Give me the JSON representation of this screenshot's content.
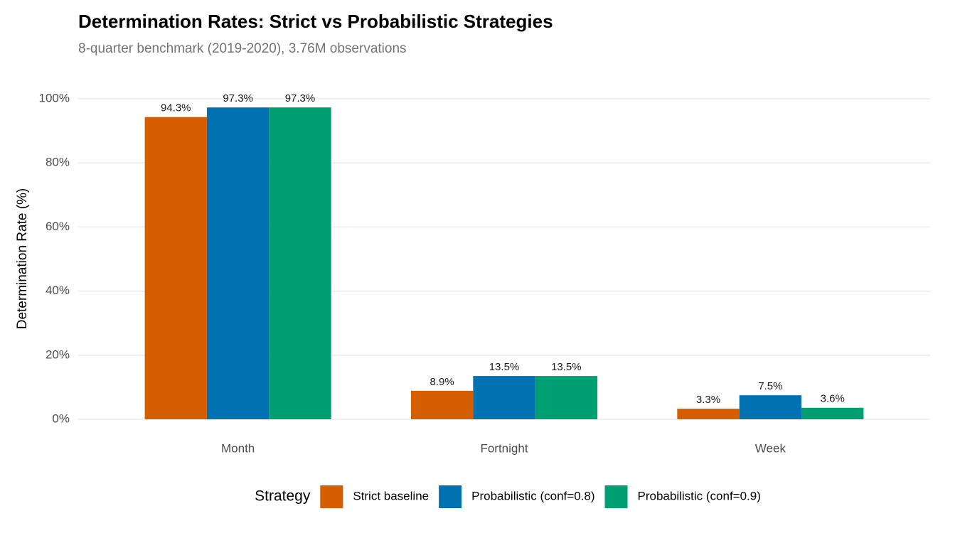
{
  "chart_data": {
    "type": "bar",
    "title": "Determination Rates: Strict vs Probabilistic Strategies",
    "subtitle": "8-quarter benchmark (2019-2020), 3.76M observations",
    "y_label": "Determination Rate (%)",
    "categories": [
      "Month",
      "Fortnight",
      "Week"
    ],
    "series": [
      {
        "name": "Strict baseline",
        "color": "#d55e00",
        "values": [
          94.3,
          8.9,
          3.3
        ],
        "value_labels": [
          "94.3%",
          "8.9%",
          "3.3%"
        ]
      },
      {
        "name": "Probabilistic (conf=0.8)",
        "color": "#0072b2",
        "values": [
          97.3,
          13.5,
          7.5
        ],
        "value_labels": [
          "97.3%",
          "13.5%",
          "7.5%"
        ]
      },
      {
        "name": "Probabilistic (conf=0.9)",
        "color": "#009e73",
        "values": [
          97.3,
          13.5,
          3.6
        ],
        "value_labels": [
          "97.3%",
          "13.5%",
          "3.6%"
        ]
      }
    ],
    "legend_title": "Strategy",
    "legend_position": "bottom",
    "ylim": [
      0,
      100
    ],
    "yticks": [
      {
        "value": 0,
        "label": "0%"
      },
      {
        "value": 20,
        "label": "20%"
      },
      {
        "value": 40,
        "label": "40%"
      },
      {
        "value": 60,
        "label": "60%"
      },
      {
        "value": 80,
        "label": "80%"
      },
      {
        "value": 100,
        "label": "100%"
      }
    ],
    "grid": true
  }
}
